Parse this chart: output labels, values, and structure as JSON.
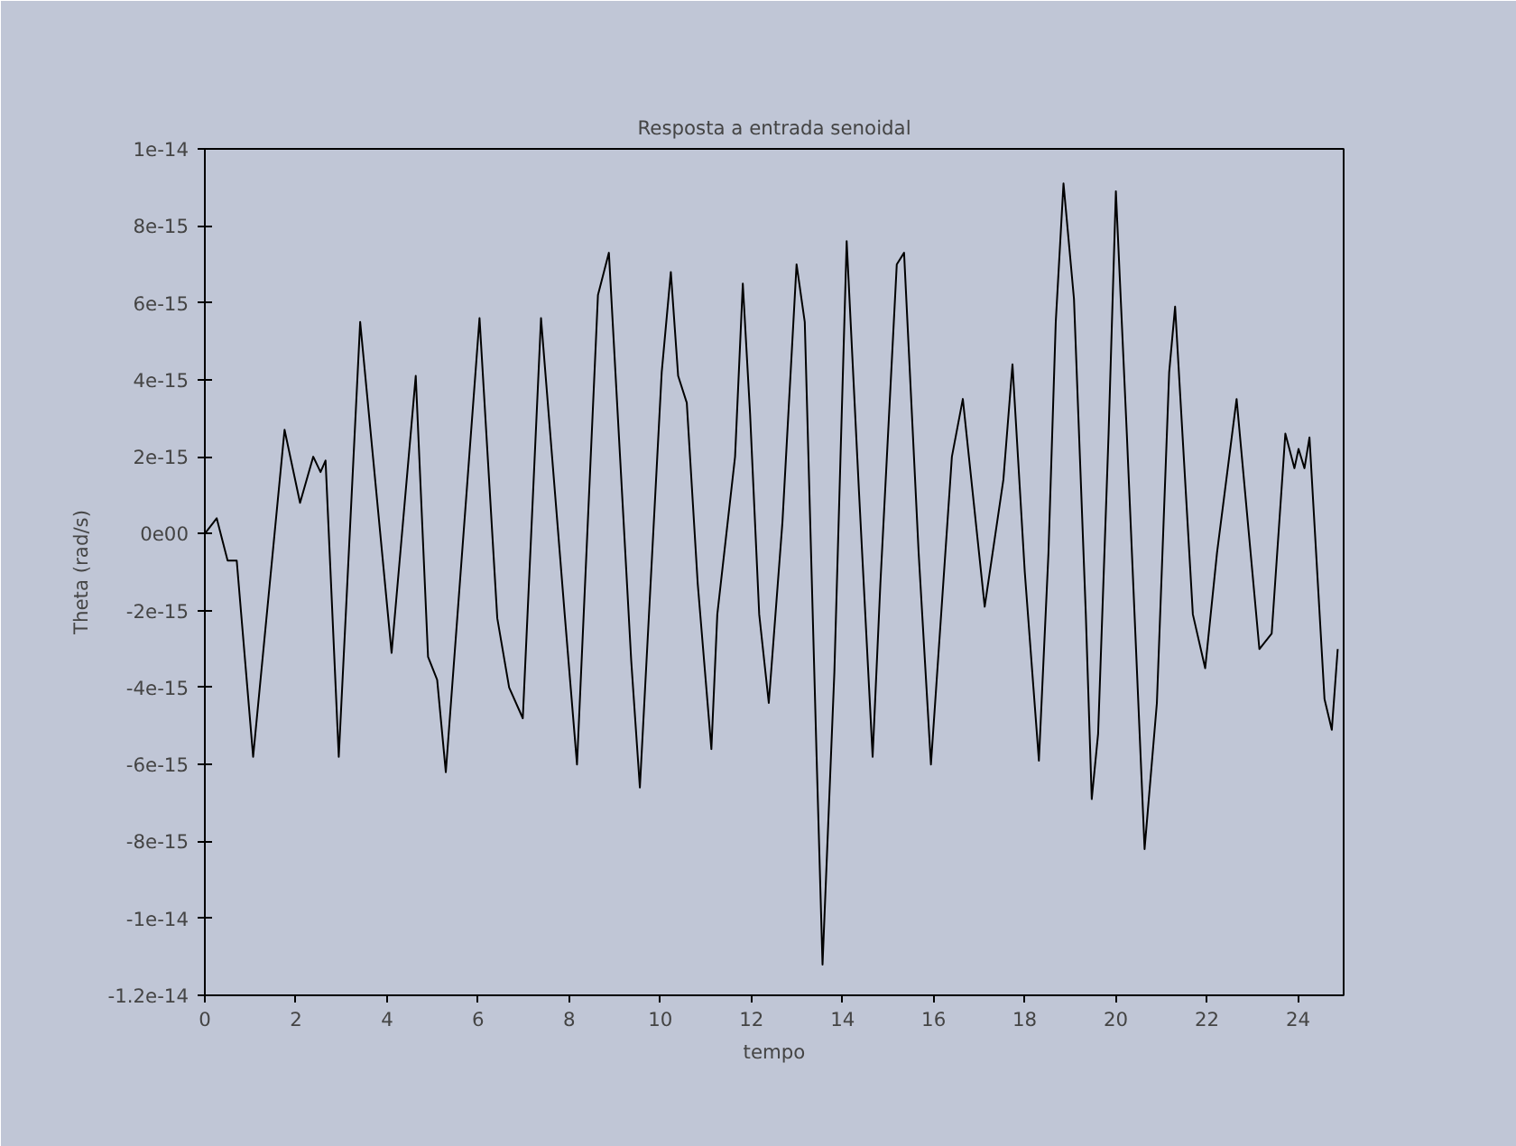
{
  "chart_data": {
    "type": "line",
    "title": "Resposta a entrada senoidal",
    "xlabel": "tempo",
    "ylabel": "Theta (rad/s)",
    "xlim": [
      0,
      25
    ],
    "xticks": [
      0,
      2,
      4,
      6,
      8,
      10,
      12,
      14,
      16,
      18,
      20,
      22,
      24
    ],
    "ylim": [
      -1.2e-14,
      1e-14
    ],
    "yticks": [
      {
        "value": 1e-14,
        "label": "1e-14"
      },
      {
        "value": 8e-15,
        "label": "8e-15"
      },
      {
        "value": 6e-15,
        "label": "6e-15"
      },
      {
        "value": 4e-15,
        "label": "4e-15"
      },
      {
        "value": 2e-15,
        "label": "2e-15"
      },
      {
        "value": 0,
        "label": "0e00"
      },
      {
        "value": -2e-15,
        "label": "-2e-15"
      },
      {
        "value": -4e-15,
        "label": "-4e-15"
      },
      {
        "value": -6e-15,
        "label": "-6e-15"
      },
      {
        "value": -8e-15,
        "label": "-8e-15"
      },
      {
        "value": -1e-14,
        "label": "-1e-14"
      },
      {
        "value": -1.2e-14,
        "label": "-1.2e-14"
      }
    ],
    "grid": false,
    "marker": "none",
    "line_style": "solid",
    "series": [
      {
        "color": "#000000",
        "x": [
          0,
          0.26,
          0.5,
          0.7,
          1.06,
          1.75,
          2.09,
          2.38,
          2.54,
          2.65,
          2.94,
          3.41,
          4.1,
          4.63,
          4.9,
          5.1,
          5.29,
          6.03,
          6.42,
          6.68,
          6.98,
          7.38,
          7.9,
          8.17,
          8.63,
          8.87,
          9.36,
          9.55,
          10.03,
          10.23,
          10.39,
          10.58,
          10.82,
          11.12,
          11.25,
          11.64,
          11.81,
          11.97,
          12.17,
          12.38,
          12.68,
          12.99,
          13.17,
          13.43,
          13.56,
          13.82,
          14.09,
          14.36,
          14.66,
          14.83,
          15.19,
          15.35,
          15.67,
          15.94,
          16.4,
          16.64,
          17.12,
          17.53,
          17.73,
          18.0,
          18.31,
          18.52,
          18.68,
          18.85,
          19.08,
          19.34,
          19.47,
          19.61,
          19.84,
          20.0,
          20.24,
          20.63,
          20.9,
          21.17,
          21.3,
          21.69,
          21.96,
          22.22,
          22.65,
          23.15,
          23.42,
          23.72,
          23.92,
          24.01,
          24.14,
          24.25,
          24.58,
          24.74,
          24.87
        ],
        "values": [
          0,
          4e-16,
          -7e-16,
          -7e-16,
          -5.8e-15,
          2.7e-15,
          8e-16,
          2e-15,
          1.6e-15,
          1.9e-15,
          -5.8e-15,
          5.5e-15,
          -3.1e-15,
          4.1e-15,
          -3.2e-15,
          -3.8e-15,
          -6.2e-15,
          5.6e-15,
          -2.2e-15,
          -4e-15,
          -4.8e-15,
          5.6e-15,
          -2.1e-15,
          -6e-15,
          6.2e-15,
          7.3e-15,
          -3.3e-15,
          -6.6e-15,
          4.2e-15,
          6.8e-15,
          4.1e-15,
          3.4e-15,
          -1.3e-15,
          -5.6e-15,
          -2.1e-15,
          2e-15,
          6.5e-15,
          3.1e-15,
          -2.1e-15,
          -4.4e-15,
          3e-16,
          7e-15,
          5.5e-15,
          -5.8e-15,
          -1.12e-14,
          -3.6e-15,
          7.6e-15,
          1.1e-15,
          -5.8e-15,
          -1.3e-15,
          7e-15,
          7.3e-15,
          -5e-16,
          -6e-15,
          2e-15,
          3.5e-15,
          -1.9e-15,
          1.4e-15,
          4.4e-15,
          -1e-15,
          -5.9e-15,
          -5e-16,
          5.5e-15,
          9.1e-15,
          6.1e-15,
          -2.1e-15,
          -6.9e-15,
          -5.2e-15,
          2.6e-15,
          8.9e-15,
          2.6e-15,
          -8.2e-15,
          -4.4e-15,
          4.2e-15,
          5.9e-15,
          -2.1e-15,
          -3.5e-15,
          -5e-16,
          3.5e-15,
          -3e-15,
          -2.6e-15,
          2.6e-15,
          1.7e-15,
          2.2e-15,
          1.7e-15,
          2.5e-15,
          -4.3e-15,
          -5.1e-15,
          -3e-15
        ]
      }
    ]
  }
}
